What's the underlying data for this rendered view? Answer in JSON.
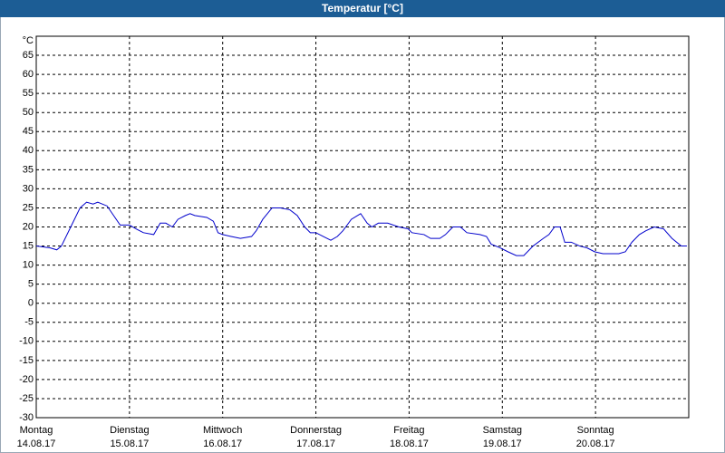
{
  "chart_data": {
    "type": "line",
    "title": "Temperatur [°C]",
    "y_label": "°C",
    "xlim": [
      0,
      7
    ],
    "ylim": [
      -30,
      70
    ],
    "xticks": [
      {
        "value": 0,
        "label": "Montag"
      },
      {
        "value": 1,
        "label": "Dienstag"
      },
      {
        "value": 2,
        "label": "Mittwoch"
      },
      {
        "value": 3,
        "label": "Donnerstag"
      },
      {
        "value": 4,
        "label": "Freitag"
      },
      {
        "value": 5,
        "label": "Samstag"
      },
      {
        "value": 6,
        "label": "Sonntag"
      }
    ],
    "xtick_dates": [
      "14.08.17",
      "15.08.17",
      "16.08.17",
      "17.08.17",
      "18.08.17",
      "19.08.17",
      "20.08.17"
    ],
    "yticks": [
      -30,
      -25,
      -20,
      -15,
      -10,
      -5,
      0,
      5,
      10,
      15,
      20,
      25,
      30,
      35,
      40,
      45,
      50,
      55,
      60,
      65
    ],
    "grid": true,
    "x": [
      0,
      0.15,
      0.22,
      0.27,
      0.37,
      0.47,
      0.54,
      0.61,
      0.66,
      0.76,
      0.83,
      0.9,
      1.0,
      1.07,
      1.15,
      1.26,
      1.33,
      1.39,
      1.46,
      1.52,
      1.6,
      1.65,
      1.7,
      1.83,
      1.9,
      1.95,
      2.0,
      2.09,
      2.19,
      2.31,
      2.36,
      2.43,
      2.53,
      2.62,
      2.72,
      2.8,
      2.88,
      2.94,
      3.0,
      3.08,
      3.16,
      3.23,
      3.29,
      3.38,
      3.48,
      3.55,
      3.6,
      3.67,
      3.77,
      3.89,
      3.99,
      4.03,
      4.16,
      4.23,
      4.33,
      4.39,
      4.47,
      4.55,
      4.62,
      4.76,
      4.83,
      4.88,
      4.98,
      5.06,
      5.15,
      5.23,
      5.33,
      5.44,
      5.5,
      5.56,
      5.62,
      5.67,
      5.74,
      5.83,
      5.91,
      5.99,
      6.08,
      6.17,
      6.25,
      6.32,
      6.39,
      6.47,
      6.54,
      6.63,
      6.73,
      6.82,
      6.92,
      6.98
    ],
    "series": [
      {
        "name": "Temperatur",
        "color": "#0000cc",
        "values": [
          15,
          14.5,
          14,
          15,
          20,
          25,
          26.5,
          26,
          26.5,
          25.5,
          23,
          20.5,
          20.5,
          19.5,
          18.5,
          18,
          21,
          21,
          20,
          22,
          23,
          23.5,
          23,
          22.5,
          21.5,
          18.5,
          18,
          17.5,
          17,
          17.5,
          19,
          22,
          25,
          25,
          24.5,
          23,
          20,
          18.5,
          18.5,
          17.5,
          16.5,
          17.5,
          19,
          22,
          23.5,
          21,
          20,
          21,
          21,
          20,
          19.5,
          18.5,
          18,
          17,
          17,
          18,
          20,
          20,
          18.5,
          18,
          17.5,
          15.5,
          14.5,
          13.5,
          12.5,
          12.5,
          15,
          17,
          18,
          20,
          20,
          16,
          16,
          15,
          14.5,
          13.5,
          13,
          13,
          13,
          13.5,
          16,
          18,
          19,
          20,
          19.5,
          17,
          15,
          15
        ]
      }
    ]
  }
}
